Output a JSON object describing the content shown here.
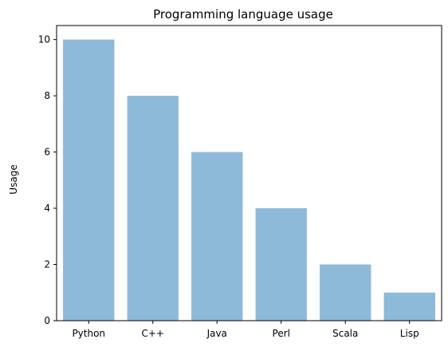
{
  "chart_data": {
    "type": "bar",
    "title": "Programming language usage",
    "xlabel": "",
    "ylabel": "Usage",
    "categories": [
      "Python",
      "C++",
      "Java",
      "Perl",
      "Scala",
      "Lisp"
    ],
    "values": [
      10,
      8,
      6,
      4,
      2,
      1
    ],
    "ylim": [
      0,
      10.5
    ],
    "yticks": [
      0,
      2,
      4,
      6,
      8,
      10
    ],
    "grid": false,
    "bar_color": "#8ebad9",
    "axis_color": "#000000"
  }
}
